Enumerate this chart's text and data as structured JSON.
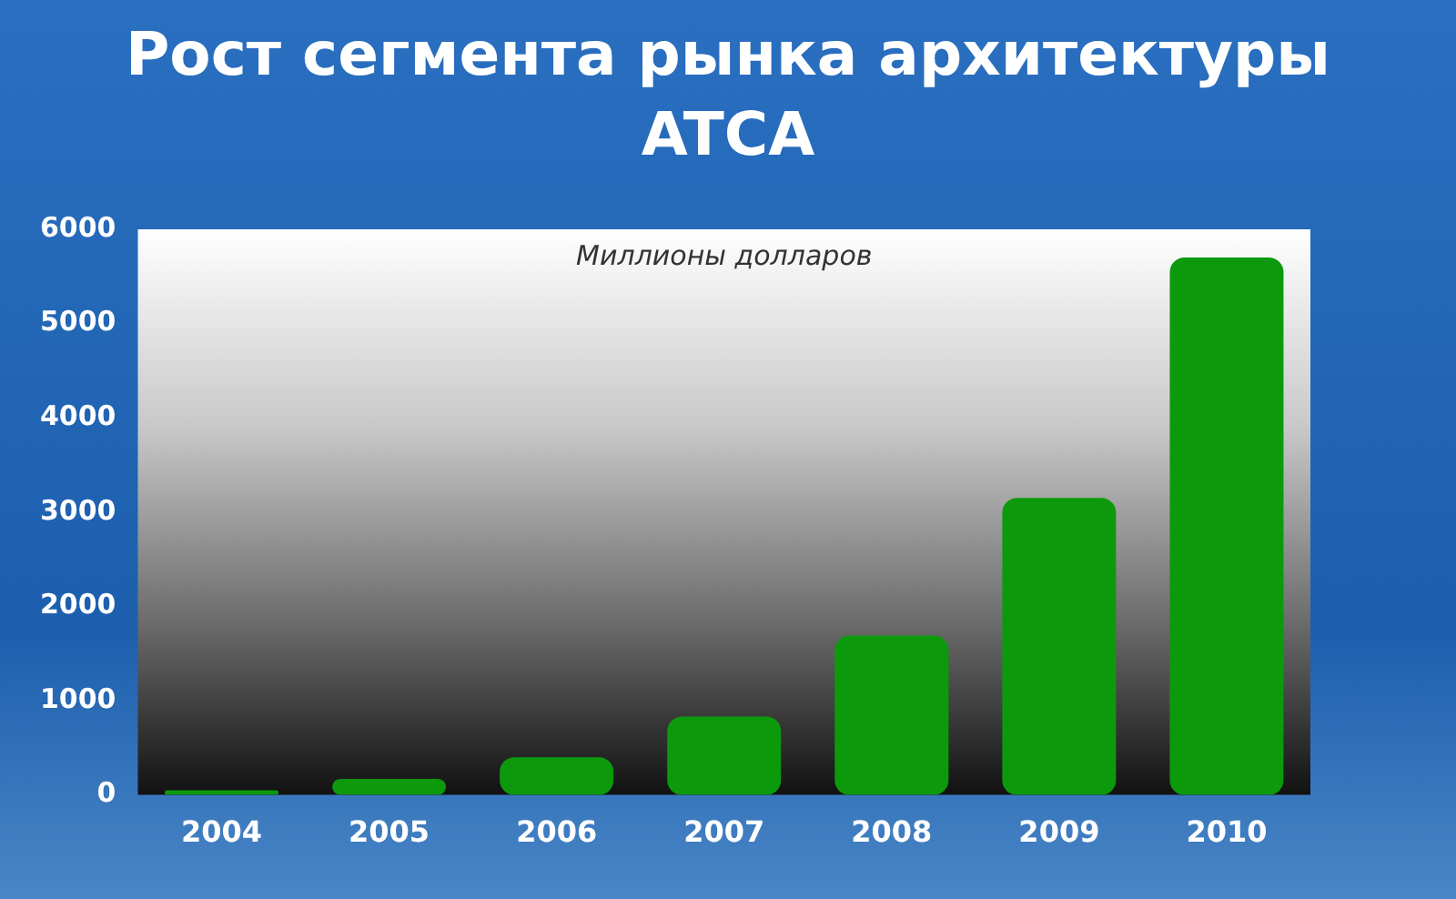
{
  "chart_data": {
    "type": "bar",
    "title": "Рост сегмента рынка архитектуры ATCA",
    "subtitle": "Миллионы долларов",
    "categories": [
      "2004",
      "2005",
      "2006",
      "2007",
      "2008",
      "2009",
      "2010"
    ],
    "values": [
      50,
      170,
      400,
      830,
      1690,
      3150,
      5700
    ],
    "color": "#0c9a0c",
    "ylim": [
      0,
      6000
    ],
    "yticks": [
      0,
      1000,
      2000,
      3000,
      4000,
      5000,
      6000
    ],
    "grid": false,
    "legend": false
  }
}
